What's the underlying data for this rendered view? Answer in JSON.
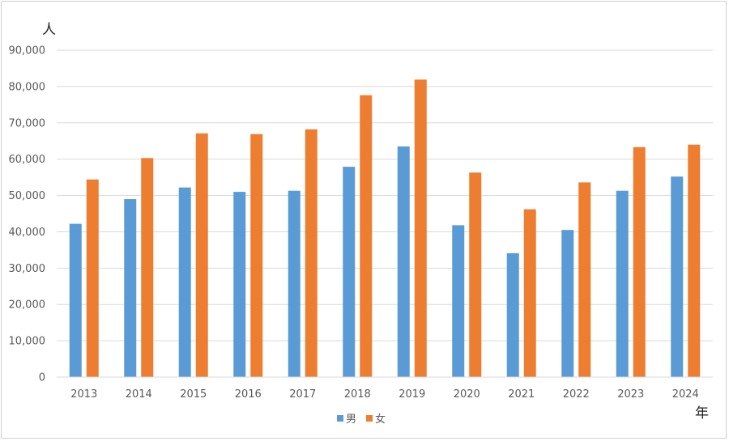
{
  "chart_data": {
    "type": "bar",
    "ylabel": "人",
    "xlabel": "年",
    "ylim": [
      0,
      90000
    ],
    "ytick_step": 10000,
    "yticks": [
      "0",
      "10,000",
      "20,000",
      "30,000",
      "40,000",
      "50,000",
      "60,000",
      "70,000",
      "80,000",
      "90,000"
    ],
    "grid": true,
    "legend_position": "bottom",
    "categories": [
      "2013",
      "2014",
      "2015",
      "2016",
      "2017",
      "2018",
      "2019",
      "2020",
      "2021",
      "2022",
      "2023",
      "2024"
    ],
    "series": [
      {
        "name": "男",
        "color": "#5b9bd5",
        "values": [
          42200,
          49000,
          52200,
          51000,
          51300,
          57900,
          63500,
          41800,
          34100,
          40500,
          51300,
          55200
        ]
      },
      {
        "name": "女",
        "color": "#ed7d31",
        "values": [
          54400,
          60300,
          67100,
          66900,
          68200,
          77600,
          81900,
          56300,
          46200,
          53600,
          63300,
          64000
        ]
      }
    ]
  }
}
